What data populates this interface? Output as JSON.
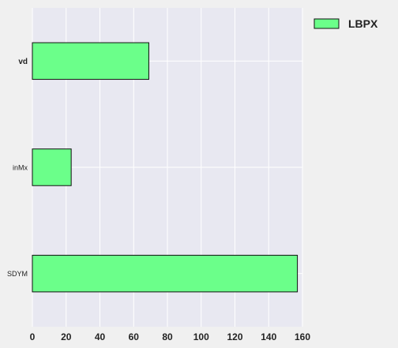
{
  "chart_data": {
    "type": "bar",
    "orientation": "horizontal",
    "categories": [
      "vd",
      "inMx",
      "SDYM"
    ],
    "series": [
      {
        "name": "LBPX",
        "values": [
          69,
          23,
          157
        ]
      }
    ],
    "xlim": [
      0,
      160
    ],
    "xticks": [
      0,
      20,
      40,
      60,
      80,
      100,
      120,
      140,
      160
    ],
    "title": "",
    "xlabel": "",
    "ylabel": "",
    "grid": true,
    "legend": "top-right outside plot",
    "colors": {
      "bar_fill": "#6bff8a",
      "bar_edge": "#111111",
      "plot_background": "#e8e8f1",
      "grid": "#ffffff",
      "figure_background": "#f0f0f0"
    }
  }
}
